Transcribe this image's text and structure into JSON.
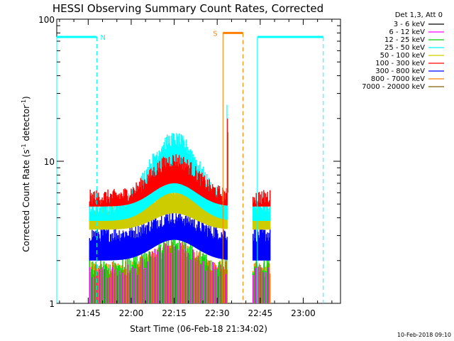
{
  "chart_data": {
    "type": "line",
    "title": "HESSI Observing Summary Count Rates, Corrected",
    "xlabel": "Start Time (06-Feb-18 21:34:02)",
    "ylabel": "Corrected Count Rate (s",
    "ylabel_sup1": "-1",
    "ylabel_mid": " detector",
    "ylabel_sup2": "-1",
    "ylabel_end": ")",
    "y_scale": "log",
    "ylim": [
      1,
      100
    ],
    "xlim_minutes": [
      "21:34",
      "23:13"
    ],
    "x_ticks": [
      "21:45",
      "22:00",
      "22:15",
      "22:30",
      "22:45",
      "23:00"
    ],
    "y_ticks": [
      "1",
      "10",
      "100"
    ],
    "legend_title": "Det 1,3, Att 0",
    "series": [
      {
        "name": "3 - 6 keV",
        "color": "#000000"
      },
      {
        "name": "6 - 12 keV",
        "color": "#ff00ff"
      },
      {
        "name": "12 - 25 keV",
        "color": "#00cc00"
      },
      {
        "name": "25 - 50 keV",
        "color": "#00ffff"
      },
      {
        "name": "50 - 100 keV",
        "color": "#cccc00"
      },
      {
        "name": "100 - 300 keV",
        "color": "#ff0000"
      },
      {
        "name": "300 - 800 keV",
        "color": "#0000ff"
      },
      {
        "name": "800 - 7000 keV",
        "color": "#ff8000"
      },
      {
        "name": "7000 - 20000 keV",
        "color": "#806000"
      }
    ],
    "annotations": [
      {
        "label": "N",
        "color": "#00ffff",
        "start": "21:34",
        "end": "21:48",
        "level": 75
      },
      {
        "label": "S",
        "color": "#ff8000",
        "start": "22:32",
        "end": "22:39",
        "level": 80
      },
      {
        "label": "",
        "color": "#00ffff",
        "start": "22:44",
        "end": "23:07",
        "level": 75
      }
    ],
    "data_gaps": [
      [
        "21:34",
        "21:46"
      ],
      [
        "22:34",
        "22:42"
      ],
      [
        "22:50",
        "23:13"
      ]
    ],
    "approx_levels": {
      "100 - 300 keV": {
        "pre_22:05": 5.5,
        "peak_22:15": 10,
        "post_22:42": 5.5
      },
      "300 - 800 keV": {
        "pre_22:05": 3,
        "peak_22:15": 4,
        "post_22:42": 3
      },
      "800 - 7000 keV": {
        "pre_22:05": 1.7,
        "peak_22:15": 2.4,
        "post_22:42": 1.7
      },
      "25 - 50 keV": {
        "peak_22:15": 14,
        "spike_22:33": 25
      }
    }
  },
  "footer_timestamp": "10-Feb-2018 09:10"
}
